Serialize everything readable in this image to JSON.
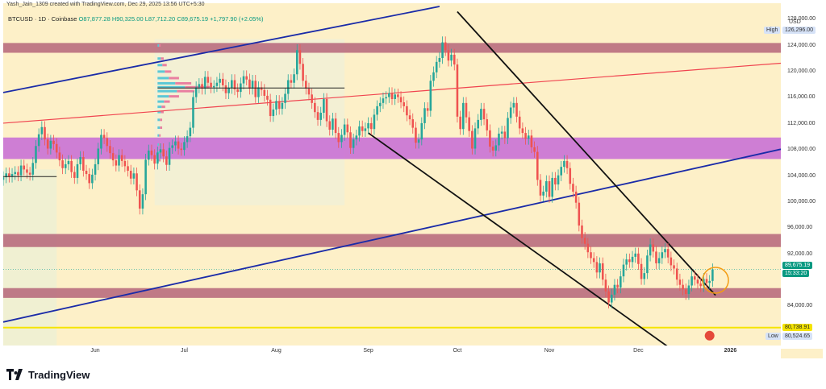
{
  "header": {
    "credit": "Yash_Jain_1309 created with TradingView.com, Dec 29, 2025 13:56 UTC+5:30",
    "symbol_line": "BTCUSD · 1D · Coinbase",
    "ohlc": "O87,877.28 H90,325.00 L87,712.20 C89,675.19 +1,797.90 (+2.05%)"
  },
  "axis": {
    "currency": "USD",
    "price_ticks": [
      "128,000.00",
      "124,000.00",
      "120,000.00",
      "116,000.00",
      "112,000.00",
      "108,000.00",
      "104,000.00",
      "100,000.00",
      "96,000.00",
      "92,000.00",
      "84,000.00"
    ],
    "high_label": "High",
    "high_value": "126,296.00",
    "current_price": "89,675.19",
    "countdown": "15:33:20",
    "support_value": "80,738.91",
    "low_label": "Low",
    "low_value": "80,524.65"
  },
  "xaxis": {
    "labels": [
      "Jun",
      "Jul",
      "Aug",
      "Sep",
      "Oct",
      "Nov",
      "Dec",
      "2026"
    ]
  },
  "brand": {
    "name": "TradingView"
  },
  "colors": {
    "background": "#fdf0c8",
    "up": "#26a69a",
    "down": "#ef5350",
    "zone_brown": "#b5657a",
    "zone_purple": "#c56ad6",
    "support_yellow": "#f5e400",
    "trend_blue": "#1a2ba8",
    "trend_red": "#f0434f",
    "trend_black": "#111111",
    "highlight_circle": "#f39c12"
  },
  "chart_data": {
    "type": "candlestick",
    "title": "BTCUSD · 1D · Coinbase",
    "ylim": [
      77500,
      130500
    ],
    "x_range": [
      "2025-05-01",
      "2026-01-18"
    ],
    "zones": [
      {
        "name": "resistance-top",
        "from": 122900,
        "to": 124400,
        "color": "brown"
      },
      {
        "name": "mid-band",
        "from": 106600,
        "to": 109900,
        "color": "purple"
      },
      {
        "name": "resistance-low",
        "from": 93100,
        "to": 95100,
        "color": "brown"
      },
      {
        "name": "support",
        "from": 85300,
        "to": 86800,
        "color": "brown"
      }
    ],
    "support_line": 80738.91,
    "trend_lines": [
      {
        "color": "blue",
        "points": [
          [
            "2025-05-01",
            116800
          ],
          [
            "2025-09-25",
            130000
          ]
        ]
      },
      {
        "color": "blue",
        "points": [
          [
            "2025-05-01",
            81600
          ],
          [
            "2026-01-18",
            108100
          ]
        ]
      },
      {
        "color": "red",
        "points": [
          [
            "2025-05-01",
            112100
          ],
          [
            "2026-01-18",
            121300
          ]
        ]
      },
      {
        "color": "black",
        "points": [
          [
            "2025-10-01",
            129200
          ],
          [
            "2025-12-27",
            85700
          ]
        ]
      },
      {
        "color": "black",
        "points": [
          [
            "2025-09-01",
            110600
          ],
          [
            "2025-12-15",
            76500
          ]
        ]
      }
    ],
    "candles": [
      [
        103400,
        103800
      ],
      [
        103800,
        104400
      ],
      [
        104400,
        103900
      ],
      [
        103900,
        104300
      ],
      [
        104300,
        104600
      ],
      [
        104600,
        104100
      ],
      [
        104100,
        105600
      ],
      [
        105600,
        105000
      ],
      [
        105000,
        104500
      ],
      [
        104500,
        104200
      ],
      [
        104200,
        106000
      ],
      [
        106000,
        108600
      ],
      [
        108600,
        110400
      ],
      [
        110400,
        111500
      ],
      [
        111500,
        109600
      ],
      [
        109600,
        108200
      ],
      [
        108200,
        109400
      ],
      [
        109400,
        108900
      ],
      [
        108900,
        107600
      ],
      [
        107600,
        106400
      ],
      [
        106400,
        105200
      ],
      [
        105200,
        105800
      ],
      [
        105800,
        106300
      ],
      [
        106300,
        104600
      ],
      [
        104600,
        103700
      ],
      [
        103700,
        105800
      ],
      [
        105800,
        106900
      ],
      [
        106900,
        104800
      ],
      [
        104800,
        104300
      ],
      [
        104300,
        102900
      ],
      [
        102900,
        104200
      ],
      [
        104200,
        105800
      ],
      [
        105800,
        108200
      ],
      [
        108200,
        110300
      ],
      [
        110300,
        109800
      ],
      [
        109800,
        108600
      ],
      [
        108600,
        107500
      ],
      [
        107500,
        106400
      ],
      [
        106400,
        105600
      ],
      [
        105600,
        107200
      ],
      [
        107200,
        106300
      ],
      [
        106300,
        105500
      ],
      [
        105500,
        104800
      ],
      [
        104800,
        103600
      ],
      [
        103600,
        104400
      ],
      [
        104400,
        101800
      ],
      [
        101800,
        99000
      ],
      [
        99000,
        101200
      ],
      [
        101200,
        106500
      ],
      [
        106500,
        107900
      ],
      [
        107900,
        107200
      ],
      [
        107200,
        105900
      ],
      [
        105900,
        107600
      ],
      [
        107600,
        108100
      ],
      [
        108100,
        107000
      ],
      [
        107000,
        105700
      ],
      [
        105700,
        108300
      ],
      [
        108300,
        108700
      ],
      [
        108700,
        109300
      ],
      [
        109300,
        108200
      ],
      [
        108200,
        108000
      ],
      [
        108000,
        109200
      ],
      [
        109200,
        110100
      ],
      [
        110100,
        111400
      ],
      [
        111400,
        116100
      ],
      [
        116100,
        117600
      ],
      [
        117600,
        118100
      ],
      [
        118100,
        117400
      ],
      [
        117400,
        119200
      ],
      [
        119200,
        118300
      ],
      [
        118300,
        117600
      ],
      [
        117600,
        117800
      ],
      [
        117800,
        118300
      ],
      [
        118300,
        118900
      ],
      [
        118900,
        117900
      ],
      [
        117900,
        116700
      ],
      [
        116700,
        117500
      ],
      [
        117500,
        118700
      ],
      [
        118700,
        117300
      ],
      [
        117300,
        116900
      ],
      [
        116900,
        118200
      ],
      [
        118200,
        119300
      ],
      [
        119300,
        118800
      ],
      [
        118800,
        117400
      ],
      [
        117400,
        118600
      ],
      [
        118600,
        116100
      ],
      [
        116100,
        117600
      ],
      [
        117600,
        117200
      ],
      [
        117200,
        116300
      ],
      [
        116300,
        115700
      ],
      [
        115700,
        113200
      ],
      [
        113200,
        114200
      ],
      [
        114200,
        115500
      ],
      [
        115500,
        114300
      ],
      [
        114300,
        115200
      ],
      [
        115200,
        116600
      ],
      [
        116600,
        118700
      ],
      [
        118700,
        118300
      ],
      [
        118300,
        119600
      ],
      [
        119600,
        123300
      ],
      [
        123300,
        121200
      ],
      [
        121200,
        118600
      ],
      [
        118600,
        117400
      ],
      [
        117400,
        116500
      ],
      [
        116500,
        115200
      ],
      [
        115200,
        113800
      ],
      [
        113800,
        112600
      ],
      [
        112600,
        113700
      ],
      [
        113700,
        115800
      ],
      [
        115800,
        112400
      ],
      [
        112400,
        111100
      ],
      [
        111100,
        112800
      ],
      [
        112800,
        110600
      ],
      [
        110600,
        109200
      ],
      [
        109200,
        110300
      ],
      [
        110300,
        111900
      ],
      [
        111900,
        110700
      ],
      [
        110700,
        108300
      ],
      [
        108300,
        109600
      ],
      [
        109600,
        110200
      ],
      [
        110200,
        111600
      ],
      [
        111600,
        110900
      ],
      [
        110900,
        111300
      ],
      [
        111300,
        112100
      ],
      [
        112100,
        111200
      ],
      [
        111200,
        113400
      ],
      [
        113400,
        114700
      ],
      [
        114700,
        115200
      ],
      [
        115200,
        115900
      ],
      [
        115900,
        116100
      ],
      [
        116100,
        116700
      ],
      [
        116700,
        115800
      ],
      [
        115800,
        116500
      ],
      [
        116500,
        116100
      ],
      [
        116100,
        115300
      ],
      [
        115300,
        114700
      ],
      [
        114700,
        113300
      ],
      [
        113300,
        112700
      ],
      [
        112700,
        111400
      ],
      [
        111400,
        109100
      ],
      [
        109100,
        109600
      ],
      [
        109600,
        112100
      ],
      [
        112100,
        114400
      ],
      [
        114400,
        114000
      ],
      [
        114000,
        118600
      ],
      [
        118600,
        119900
      ],
      [
        119900,
        121500
      ],
      [
        121500,
        122100
      ],
      [
        122100,
        124500
      ],
      [
        124500,
        123300
      ],
      [
        123300,
        121700
      ],
      [
        121700,
        122600
      ],
      [
        122600,
        121100
      ],
      [
        121100,
        113100
      ],
      [
        113100,
        111200
      ],
      [
        111200,
        115200
      ],
      [
        115200,
        113000
      ],
      [
        113000,
        110900
      ],
      [
        110900,
        108200
      ],
      [
        108200,
        111300
      ],
      [
        111300,
        112600
      ],
      [
        112600,
        114300
      ],
      [
        114300,
        112700
      ],
      [
        112700,
        111000
      ],
      [
        111000,
        108500
      ],
      [
        108500,
        107900
      ],
      [
        107900,
        108700
      ],
      [
        108700,
        110500
      ],
      [
        110500,
        110800
      ],
      [
        110800,
        109800
      ],
      [
        109800,
        112900
      ],
      [
        112900,
        114500
      ],
      [
        114500,
        115200
      ],
      [
        115200,
        113100
      ],
      [
        113100,
        111300
      ],
      [
        111300,
        110600
      ],
      [
        110600,
        109700
      ],
      [
        109700,
        110200
      ],
      [
        110200,
        108400
      ],
      [
        108400,
        107700
      ],
      [
        107700,
        103400
      ],
      [
        103400,
        101000
      ],
      [
        101000,
        101600
      ],
      [
        101600,
        103200
      ],
      [
        103200,
        100800
      ],
      [
        100800,
        103700
      ],
      [
        103700,
        102700
      ],
      [
        102700,
        104100
      ],
      [
        104100,
        105400
      ],
      [
        105400,
        106300
      ],
      [
        106300,
        105200
      ],
      [
        105200,
        102800
      ],
      [
        102800,
        101600
      ],
      [
        101600,
        99900
      ],
      [
        99900,
        96400
      ],
      [
        96400,
        94500
      ],
      [
        94500,
        93600
      ],
      [
        93600,
        92300
      ],
      [
        92300,
        91400
      ],
      [
        91400,
        90800
      ],
      [
        90800,
        89200
      ],
      [
        89200,
        90600
      ],
      [
        90600,
        88100
      ],
      [
        88100,
        86300
      ],
      [
        86300,
        84600
      ],
      [
        84600,
        85800
      ],
      [
        85800,
        87300
      ],
      [
        87300,
        86900
      ],
      [
        86900,
        88600
      ],
      [
        88600,
        90400
      ],
      [
        90400,
        91200
      ],
      [
        91200,
        90800
      ],
      [
        90800,
        91600
      ],
      [
        91600,
        92100
      ],
      [
        92100,
        90500
      ],
      [
        90500,
        88200
      ],
      [
        88200,
        89100
      ],
      [
        89100,
        91800
      ],
      [
        91800,
        93500
      ],
      [
        93500,
        92400
      ],
      [
        92400,
        90600
      ],
      [
        90600,
        91400
      ],
      [
        91400,
        92300
      ],
      [
        92300,
        92800
      ],
      [
        92800,
        91500
      ],
      [
        91500,
        90300
      ],
      [
        90300,
        89800
      ],
      [
        89800,
        88100
      ],
      [
        88100,
        87300
      ],
      [
        87300,
        86600
      ],
      [
        86600,
        85900
      ],
      [
        85900,
        87200
      ],
      [
        87200,
        88600
      ],
      [
        88600,
        88100
      ],
      [
        88100,
        87500
      ],
      [
        87500,
        87100
      ],
      [
        87100,
        88200
      ],
      [
        88200,
        87600
      ],
      [
        87600,
        87900
      ],
      [
        87900,
        89675
      ]
    ]
  }
}
